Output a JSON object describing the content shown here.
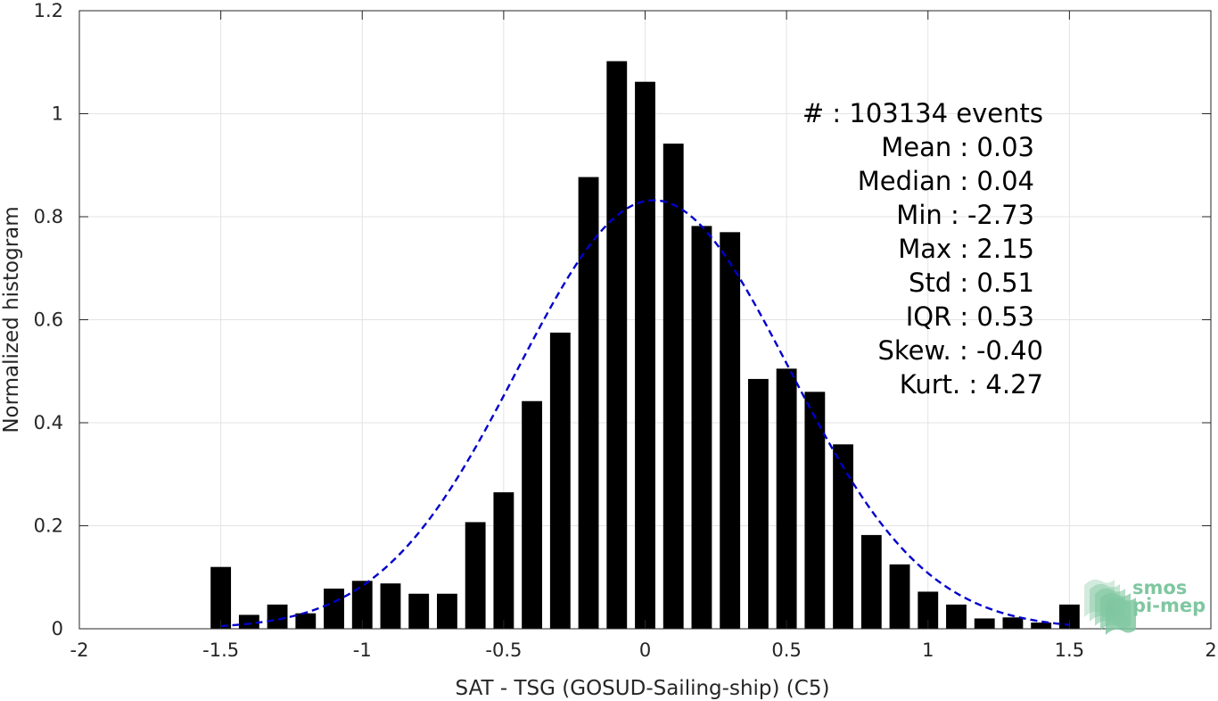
{
  "chart_data": {
    "type": "bar",
    "xlabel": "SAT - TSG (GOSUD-Sailing-ship) (C5)",
    "ylabel": "Normalized histogram",
    "xlim": [
      -2,
      2
    ],
    "ylim": [
      0,
      1.2
    ],
    "xticks": [
      -2,
      -1.5,
      -1,
      -0.5,
      0,
      0.5,
      1,
      1.5,
      2
    ],
    "xtick_labels": [
      "-2",
      "-1.5",
      "-1",
      "-0.5",
      "0",
      "0.5",
      "1",
      "1.5",
      "2"
    ],
    "yticks": [
      0,
      0.2,
      0.4,
      0.6,
      0.8,
      1,
      1.2
    ],
    "ytick_labels": [
      "0",
      "0.2",
      "0.4",
      "0.6",
      "0.8",
      "1",
      "1.2"
    ],
    "grid": true,
    "bar_color": "#000000",
    "bin_width": 0.1,
    "x": [
      -1.5,
      -1.4,
      -1.3,
      -1.2,
      -1.1,
      -1.0,
      -0.9,
      -0.8,
      -0.7,
      -0.6,
      -0.5,
      -0.4,
      -0.3,
      -0.2,
      -0.1,
      0.0,
      0.1,
      0.2,
      0.3,
      0.4,
      0.5,
      0.6,
      0.7,
      0.8,
      0.9,
      1.0,
      1.1,
      1.2,
      1.3,
      1.4,
      1.5
    ],
    "values": [
      0.12,
      0.027,
      0.047,
      0.03,
      0.078,
      0.093,
      0.088,
      0.068,
      0.068,
      0.207,
      0.265,
      0.442,
      0.575,
      0.877,
      1.102,
      1.062,
      0.942,
      0.782,
      0.77,
      0.485,
      0.505,
      0.46,
      0.358,
      0.182,
      0.125,
      0.072,
      0.047,
      0.02,
      0.022,
      0.012,
      0.047
    ],
    "fit": {
      "type": "gaussian",
      "color": "#0000cc",
      "style": "dashed",
      "mean": 0.03,
      "std": 0.48,
      "peak": 0.832,
      "x_range": [
        -1.5,
        1.5
      ]
    },
    "annotations": [
      {
        "label": "#",
        "sep": " : ",
        "value": "103134 events"
      },
      {
        "label": "Mean",
        "sep": " : ",
        "value": "0.03"
      },
      {
        "label": "Median",
        "sep": " : ",
        "value": "0.04"
      },
      {
        "label": "Min",
        "sep": " : ",
        "value": "-2.73"
      },
      {
        "label": "Max",
        "sep": " : ",
        "value": "2.15"
      },
      {
        "label": "Std",
        "sep": " : ",
        "value": "0.51"
      },
      {
        "label": "IQR",
        "sep": " : ",
        "value": "0.53"
      },
      {
        "label": "Skew.",
        "sep": " : ",
        "value": "-0.40"
      },
      {
        "label": "Kurt.",
        "sep": " : ",
        "value": "4.27"
      }
    ]
  },
  "logo": {
    "line1": "smos",
    "line2": "pi-mep",
    "color": "#7fc7a0",
    "icon": "layered-waves-icon"
  }
}
